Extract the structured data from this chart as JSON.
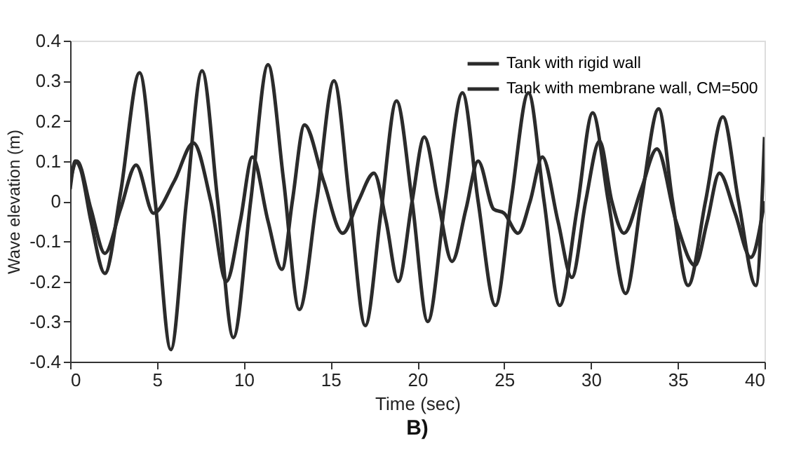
{
  "chart_data": {
    "type": "line",
    "xlabel": "Time (sec)",
    "ylabel": "Wave elevation (m)",
    "xlim": [
      0,
      40
    ],
    "xticks": [
      0,
      5,
      10,
      15,
      20,
      25,
      30,
      35,
      40
    ],
    "ylim": [
      -0.4,
      0.4
    ],
    "yticks": [
      -0.4,
      -0.3,
      -0.2,
      -0.1,
      0,
      0.1,
      0.2,
      0.3,
      0.4
    ],
    "grid": false,
    "legend": "top right",
    "marker": "none",
    "line_style": "solid",
    "annotations": [
      "B)"
    ],
    "series": [
      {
        "name": "Tank with rigid wall",
        "color": "#2b2b2b",
        "x": [
          0,
          0.3,
          0.6,
          1.2,
          2.0,
          2.9,
          4.0,
          4.9,
          5.8,
          6.7,
          7.6,
          8.5,
          9.4,
          10.4,
          11.4,
          12.3,
          13.2,
          14.2,
          15.2,
          16.1,
          17.0,
          17.9,
          18.8,
          19.7,
          20.6,
          21.6,
          22.6,
          23.5,
          24.5,
          25.4,
          26.4,
          27.3,
          28.2,
          29.2,
          30.1,
          31.0,
          32.0,
          32.9,
          33.9,
          34.7,
          35.6,
          36.6,
          37.6,
          38.5,
          39.5,
          40
        ],
        "values": [
          0.03,
          0.1,
          0.08,
          -0.05,
          -0.18,
          0.02,
          0.32,
          0.0,
          -0.37,
          0.0,
          0.325,
          0.0,
          -0.34,
          0.0,
          0.34,
          0.05,
          -0.27,
          0.0,
          0.3,
          0.0,
          -0.31,
          -0.03,
          0.25,
          0.0,
          -0.3,
          0.0,
          0.27,
          0.0,
          -0.26,
          0.0,
          0.27,
          0.0,
          -0.26,
          -0.02,
          0.22,
          0.0,
          -0.23,
          0.0,
          0.23,
          0.0,
          -0.21,
          0.0,
          0.21,
          0.0,
          -0.21,
          0.16
        ]
      },
      {
        "name": "Tank with membrane wall, CM=500",
        "color": "#2b2b2b",
        "x": [
          0,
          0.4,
          1.2,
          2.0,
          2.9,
          3.8,
          4.8,
          6.0,
          7.1,
          8.1,
          9.0,
          9.8,
          10.5,
          11.4,
          12.2,
          12.8,
          13.5,
          14.6,
          15.7,
          16.6,
          17.5,
          18.2,
          18.9,
          19.7,
          20.4,
          21.2,
          22.0,
          22.8,
          23.5,
          24.4,
          25.0,
          25.8,
          26.5,
          27.2,
          28.1,
          28.9,
          29.7,
          30.5,
          31.2,
          31.9,
          32.9,
          33.8,
          34.9,
          36.0,
          36.7,
          37.4,
          38.3,
          39.2,
          40
        ],
        "values": [
          0.05,
          0.1,
          -0.02,
          -0.13,
          -0.02,
          0.09,
          -0.03,
          0.05,
          0.145,
          0.0,
          -0.2,
          -0.05,
          0.11,
          -0.05,
          -0.17,
          0.0,
          0.19,
          0.05,
          -0.08,
          0.0,
          0.07,
          -0.05,
          -0.2,
          0.0,
          0.16,
          0.0,
          -0.15,
          -0.02,
          0.1,
          -0.02,
          -0.03,
          -0.08,
          0.0,
          0.11,
          -0.05,
          -0.19,
          0.0,
          0.15,
          0.0,
          -0.08,
          0.03,
          0.13,
          -0.05,
          -0.16,
          -0.05,
          0.07,
          -0.03,
          -0.14,
          0.0
        ]
      }
    ]
  }
}
